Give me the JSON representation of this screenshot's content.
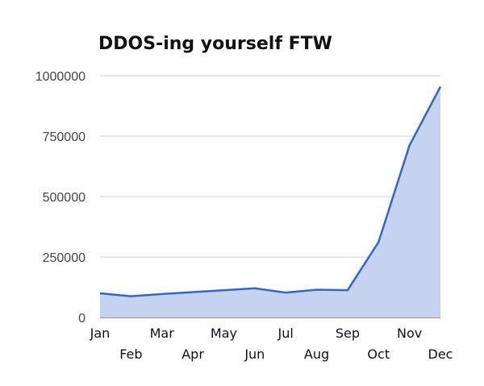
{
  "chart_data": {
    "type": "area",
    "title": "DDOS-ing yourself FTW",
    "xlabel": "",
    "ylabel": "",
    "categories": [
      "Jan",
      "Feb",
      "Mar",
      "Apr",
      "May",
      "Jun",
      "Jul",
      "Aug",
      "Sep",
      "Oct",
      "Nov",
      "Dec"
    ],
    "series": [
      {
        "values": [
          100000,
          88000,
          97000,
          105000,
          113000,
          121000,
          103000,
          115000,
          113000,
          312000,
          712000,
          955000
        ]
      }
    ],
    "ylim": [
      0,
      1000000
    ],
    "yticks": [
      0,
      250000,
      500000,
      750000,
      1000000
    ],
    "ytick_labels": [
      "0",
      "250000",
      "500000",
      "750000",
      "1000000"
    ],
    "grid": true,
    "legend": "none",
    "colors": {
      "line": "#3366cc",
      "fill": "#c5d3f1",
      "grid": "#cfcfcf",
      "baseline": "#333333"
    }
  }
}
